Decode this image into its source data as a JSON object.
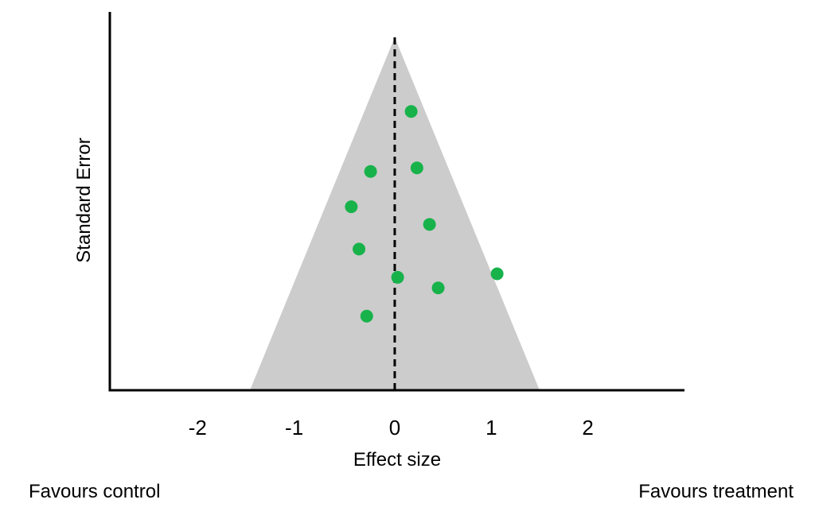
{
  "chart_data": {
    "type": "scatter",
    "title": "",
    "xlabel": "Effect size",
    "ylabel": "Standard Error",
    "x_ticks": [
      -2,
      -1,
      0,
      1,
      2
    ],
    "xlim": [
      -2.95,
      3.0
    ],
    "grid": false,
    "funnel": {
      "apex_x": 0,
      "base_left_x": -1.5,
      "base_right_x": 1.5,
      "color": "#cccccc"
    },
    "reference_line": {
      "x": 0,
      "style": "dashed"
    },
    "point_color": "#18b24b",
    "points": [
      {
        "x": 0.17,
        "y": 0.79
      },
      {
        "x": -0.25,
        "y": 0.62
      },
      {
        "x": 0.23,
        "y": 0.63
      },
      {
        "x": -0.45,
        "y": 0.52
      },
      {
        "x": 0.36,
        "y": 0.47
      },
      {
        "x": -0.37,
        "y": 0.4
      },
      {
        "x": 1.06,
        "y": 0.33
      },
      {
        "x": 0.03,
        "y": 0.32
      },
      {
        "x": 0.45,
        "y": 0.29
      },
      {
        "x": -0.29,
        "y": 0.21
      }
    ],
    "annotations": {
      "left": "Favours control",
      "right": "Favours treatment"
    }
  }
}
